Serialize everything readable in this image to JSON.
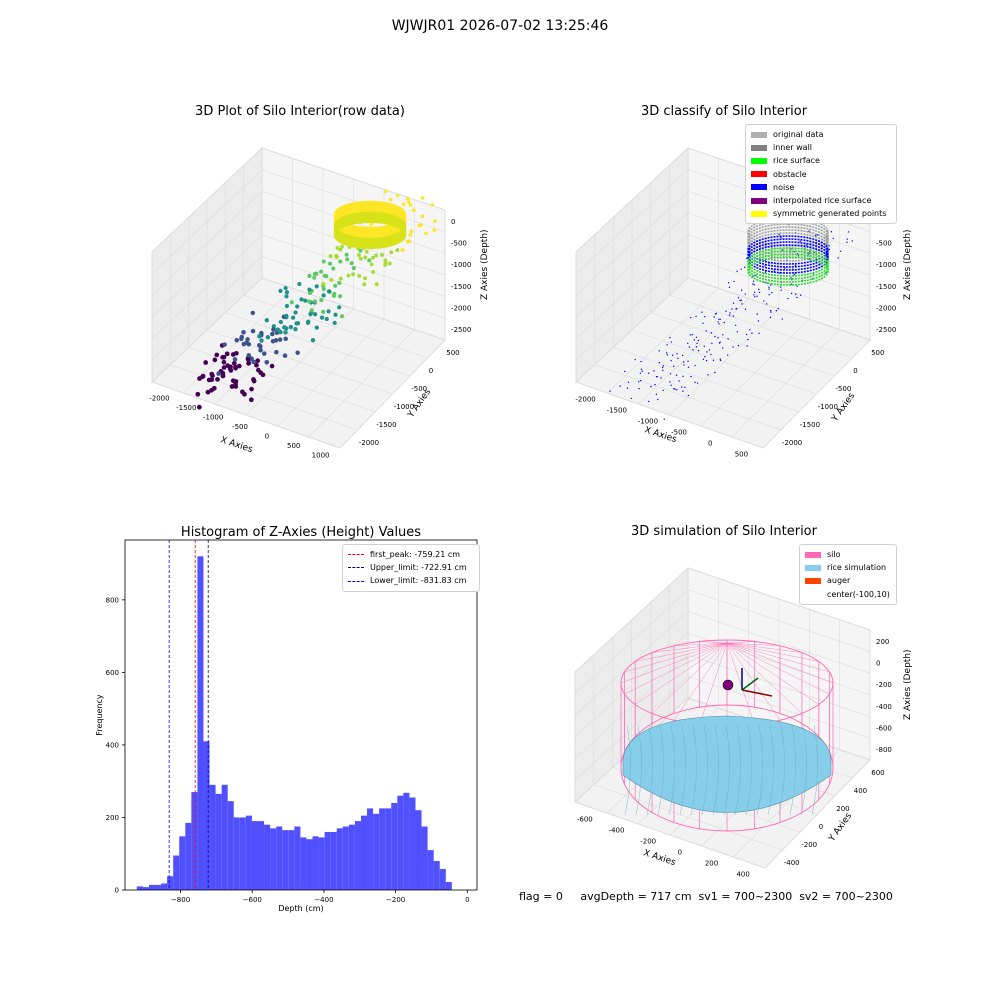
{
  "suptitle": "WJWJR01 2026-07-02 13:25:46",
  "panels": {
    "raw": {
      "title": "3D Plot of Silo Interior(row data)",
      "xlabel": "X Axies",
      "ylabel": "Y Axies",
      "zlabel": "Z Axies (Depth)",
      "xticks": [
        "-2000",
        "-1500",
        "-1000",
        "-500",
        "0",
        "500",
        "1000"
      ],
      "yticks": [
        "500",
        "0",
        "-500",
        "-1000",
        "-1500",
        "-2000"
      ],
      "zticks": [
        "0",
        "-500",
        "-1000",
        "-1500",
        "-2000",
        "-2500"
      ]
    },
    "classify": {
      "title": "3D classify of Silo Interior",
      "xlabel": "X Axies",
      "ylabel": "Y Axies",
      "zlabel": "Z Axies (Depth)",
      "xticks": [
        "-2000",
        "-1500",
        "-1000",
        "-500",
        "0",
        "500"
      ],
      "yticks": [
        "500",
        "0",
        "-500",
        "-1000",
        "-1500",
        "-2000"
      ],
      "zticks": [
        "0",
        "-500",
        "-1000",
        "-1500",
        "-2000",
        "-2500"
      ],
      "legend": [
        {
          "label": "original data",
          "color": "#b0b0b0"
        },
        {
          "label": "inner wall",
          "color": "#808080"
        },
        {
          "label": "rice surface",
          "color": "#00ff00"
        },
        {
          "label": "obstacle",
          "color": "#ff0000"
        },
        {
          "label": "noise",
          "color": "#0000ff"
        },
        {
          "label": "interpolated rice surface",
          "color": "#800080"
        },
        {
          "label": "symmetric generated points",
          "color": "#ffff00"
        }
      ]
    },
    "simulation": {
      "title": "3D simulation of Silo Interior",
      "xlabel": "X Axies",
      "ylabel": "Y Axies",
      "zlabel": "Z Axies (Depth)",
      "xticks": [
        "-600",
        "-400",
        "-200",
        "0",
        "200",
        "400"
      ],
      "yticks": [
        "600",
        "400",
        "200",
        "0",
        "-200",
        "-400"
      ],
      "zticks": [
        "200",
        "0",
        "-200",
        "-400",
        "-600",
        "-800"
      ],
      "legend": [
        {
          "label": "silo",
          "color": "#ff69b4"
        },
        {
          "label": "rice simulation",
          "color": "#87ceeb"
        },
        {
          "label": "auger",
          "color": "#ff4500"
        },
        {
          "label": "center(-100,10)",
          "color": ""
        }
      ]
    }
  },
  "bottom_info": "flag = 0     avgDepth = 717 cm  sv1 = 700~2300  sv2 = 700~2300",
  "chart_data": [
    {
      "type": "bar",
      "title": "Histogram of Z-Axies (Height) Values",
      "xlabel": "Depth (cm)",
      "ylabel": "Frequency",
      "xlim": [
        -955,
        27
      ],
      "ylim": [
        0,
        965
      ],
      "xticks": [
        -800,
        -600,
        -400,
        -200,
        0
      ],
      "yticks": [
        0,
        200,
        400,
        600,
        800
      ],
      "bin_width": 16.9,
      "bin_start": -922,
      "values": [
        10,
        8,
        14,
        14,
        18,
        38,
        95,
        148,
        185,
        270,
        920,
        410,
        290,
        265,
        290,
        245,
        200,
        200,
        205,
        190,
        190,
        180,
        170,
        175,
        165,
        165,
        175,
        145,
        140,
        148,
        145,
        160,
        160,
        170,
        175,
        180,
        190,
        205,
        225,
        210,
        225,
        225,
        240,
        260,
        268,
        255,
        220,
        175,
        110,
        80,
        58,
        22
      ],
      "lines": [
        {
          "label": "first_peak: -759.21 cm",
          "x": -759.21,
          "color": "#ff0000"
        },
        {
          "label": "Upper_limit: -722.91 cm",
          "x": -722.91,
          "color": "#00008b"
        },
        {
          "label": "Lower_limit: -831.83 cm",
          "x": -831.83,
          "color": "#0000ff"
        }
      ]
    }
  ]
}
